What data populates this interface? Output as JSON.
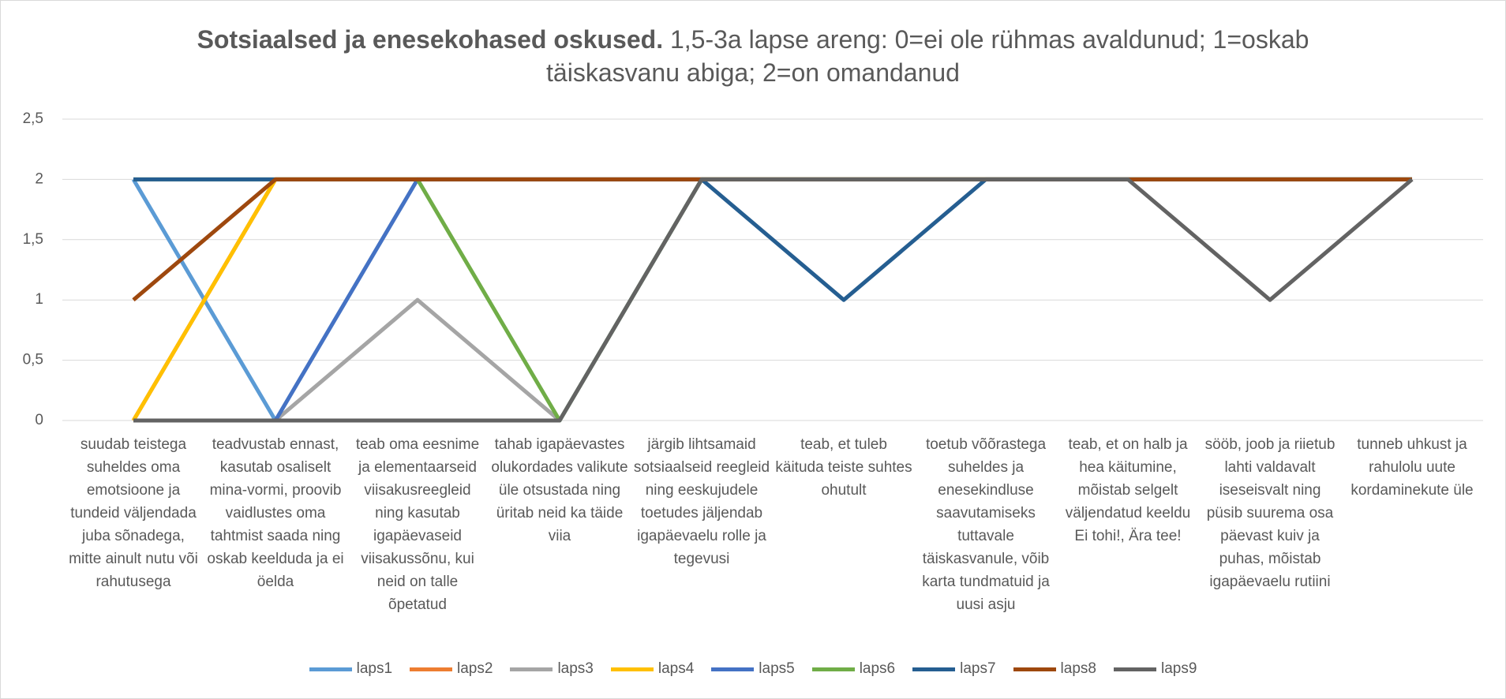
{
  "chart_data": {
    "type": "line",
    "title": "Sotsiaalsed ja enesekohased oskused.",
    "subtitle": "1,5-3a lapse areng: 0=ei ole rühmas avaldunud; 1=oskab täiskasvanu abiga; 2=on omandanud",
    "categories": [
      "suudab teistega suheldes oma emotsioone ja tundeid väljendada juba sõnadega, mitte ainult nutu või rahutusega",
      "teadvustab ennast, kasutab osaliselt mina-vormi, proovib vaidlustes oma tahtmist saada ning oskab keelduda ja ei öelda",
      "teab oma eesnime ja elementaarseid viisakusreegleid ning kasutab igapäevaseid viisakussõnu, kui neid on talle õpetatud",
      "tahab igapäevastes olukordades valikute üle otsustada ning üritab neid ka täide viia",
      "järgib lihtsamaid sotsiaalseid reegleid ning eeskujudele toetudes jäljendab igapäevaelu rolle ja tegevusi",
      "teab, et tuleb käituda teiste suhtes ohutult",
      "toetub võõrastega suheldes ja enesekindluse saavutamiseks tuttavale täiskasvanule, võib karta tundmatuid ja uusi asju",
      "teab, et on halb ja hea käitumine, mõistab selgelt väljendatud keeldu Ei tohi!, Ära tee!",
      "sööb, joob ja riietub lahti valdavalt iseseisvalt ning püsib suurema osa päevast kuiv ja puhas, mõistab igapäevaelu rutiini",
      "tunneb uhkust ja rahulolu uute kordaminekute üle"
    ],
    "series": [
      {
        "name": "laps1",
        "color": "#5b9bd5",
        "values": [
          2,
          0,
          0,
          0,
          2,
          2,
          2,
          2,
          2,
          2
        ]
      },
      {
        "name": "laps2",
        "color": "#ed7d31",
        "values": [
          0,
          2,
          2,
          2,
          2,
          2,
          2,
          2,
          2,
          2
        ]
      },
      {
        "name": "laps3",
        "color": "#a5a5a5",
        "values": [
          0,
          0,
          1,
          0,
          2,
          2,
          2,
          2,
          2,
          2
        ]
      },
      {
        "name": "laps4",
        "color": "#ffc000",
        "values": [
          0,
          2,
          2,
          2,
          2,
          2,
          2,
          2,
          2,
          2
        ]
      },
      {
        "name": "laps5",
        "color": "#4472c4",
        "values": [
          0,
          0,
          2,
          2,
          2,
          2,
          2,
          2,
          2,
          2
        ]
      },
      {
        "name": "laps6",
        "color": "#70ad47",
        "values": [
          2,
          2,
          2,
          0,
          2,
          2,
          2,
          2,
          2,
          2
        ]
      },
      {
        "name": "laps7",
        "color": "#255e91",
        "values": [
          2,
          2,
          2,
          2,
          2,
          1,
          2,
          2,
          2,
          2
        ]
      },
      {
        "name": "laps8",
        "color": "#9e480e",
        "values": [
          1,
          2,
          2,
          2,
          2,
          2,
          2,
          2,
          2,
          2
        ]
      },
      {
        "name": "laps9",
        "color": "#636363",
        "values": [
          0,
          0,
          0,
          0,
          2,
          2,
          2,
          2,
          1,
          2
        ]
      }
    ],
    "ylim": [
      0,
      2.5
    ],
    "yticks": [
      0,
      {
        "value": 0.5,
        "label": "0,5"
      },
      1,
      {
        "value": 1.5,
        "label": "1,5"
      },
      2,
      {
        "value": 2.5,
        "label": "2,5"
      }
    ],
    "grid": true,
    "legend": "bottom"
  }
}
